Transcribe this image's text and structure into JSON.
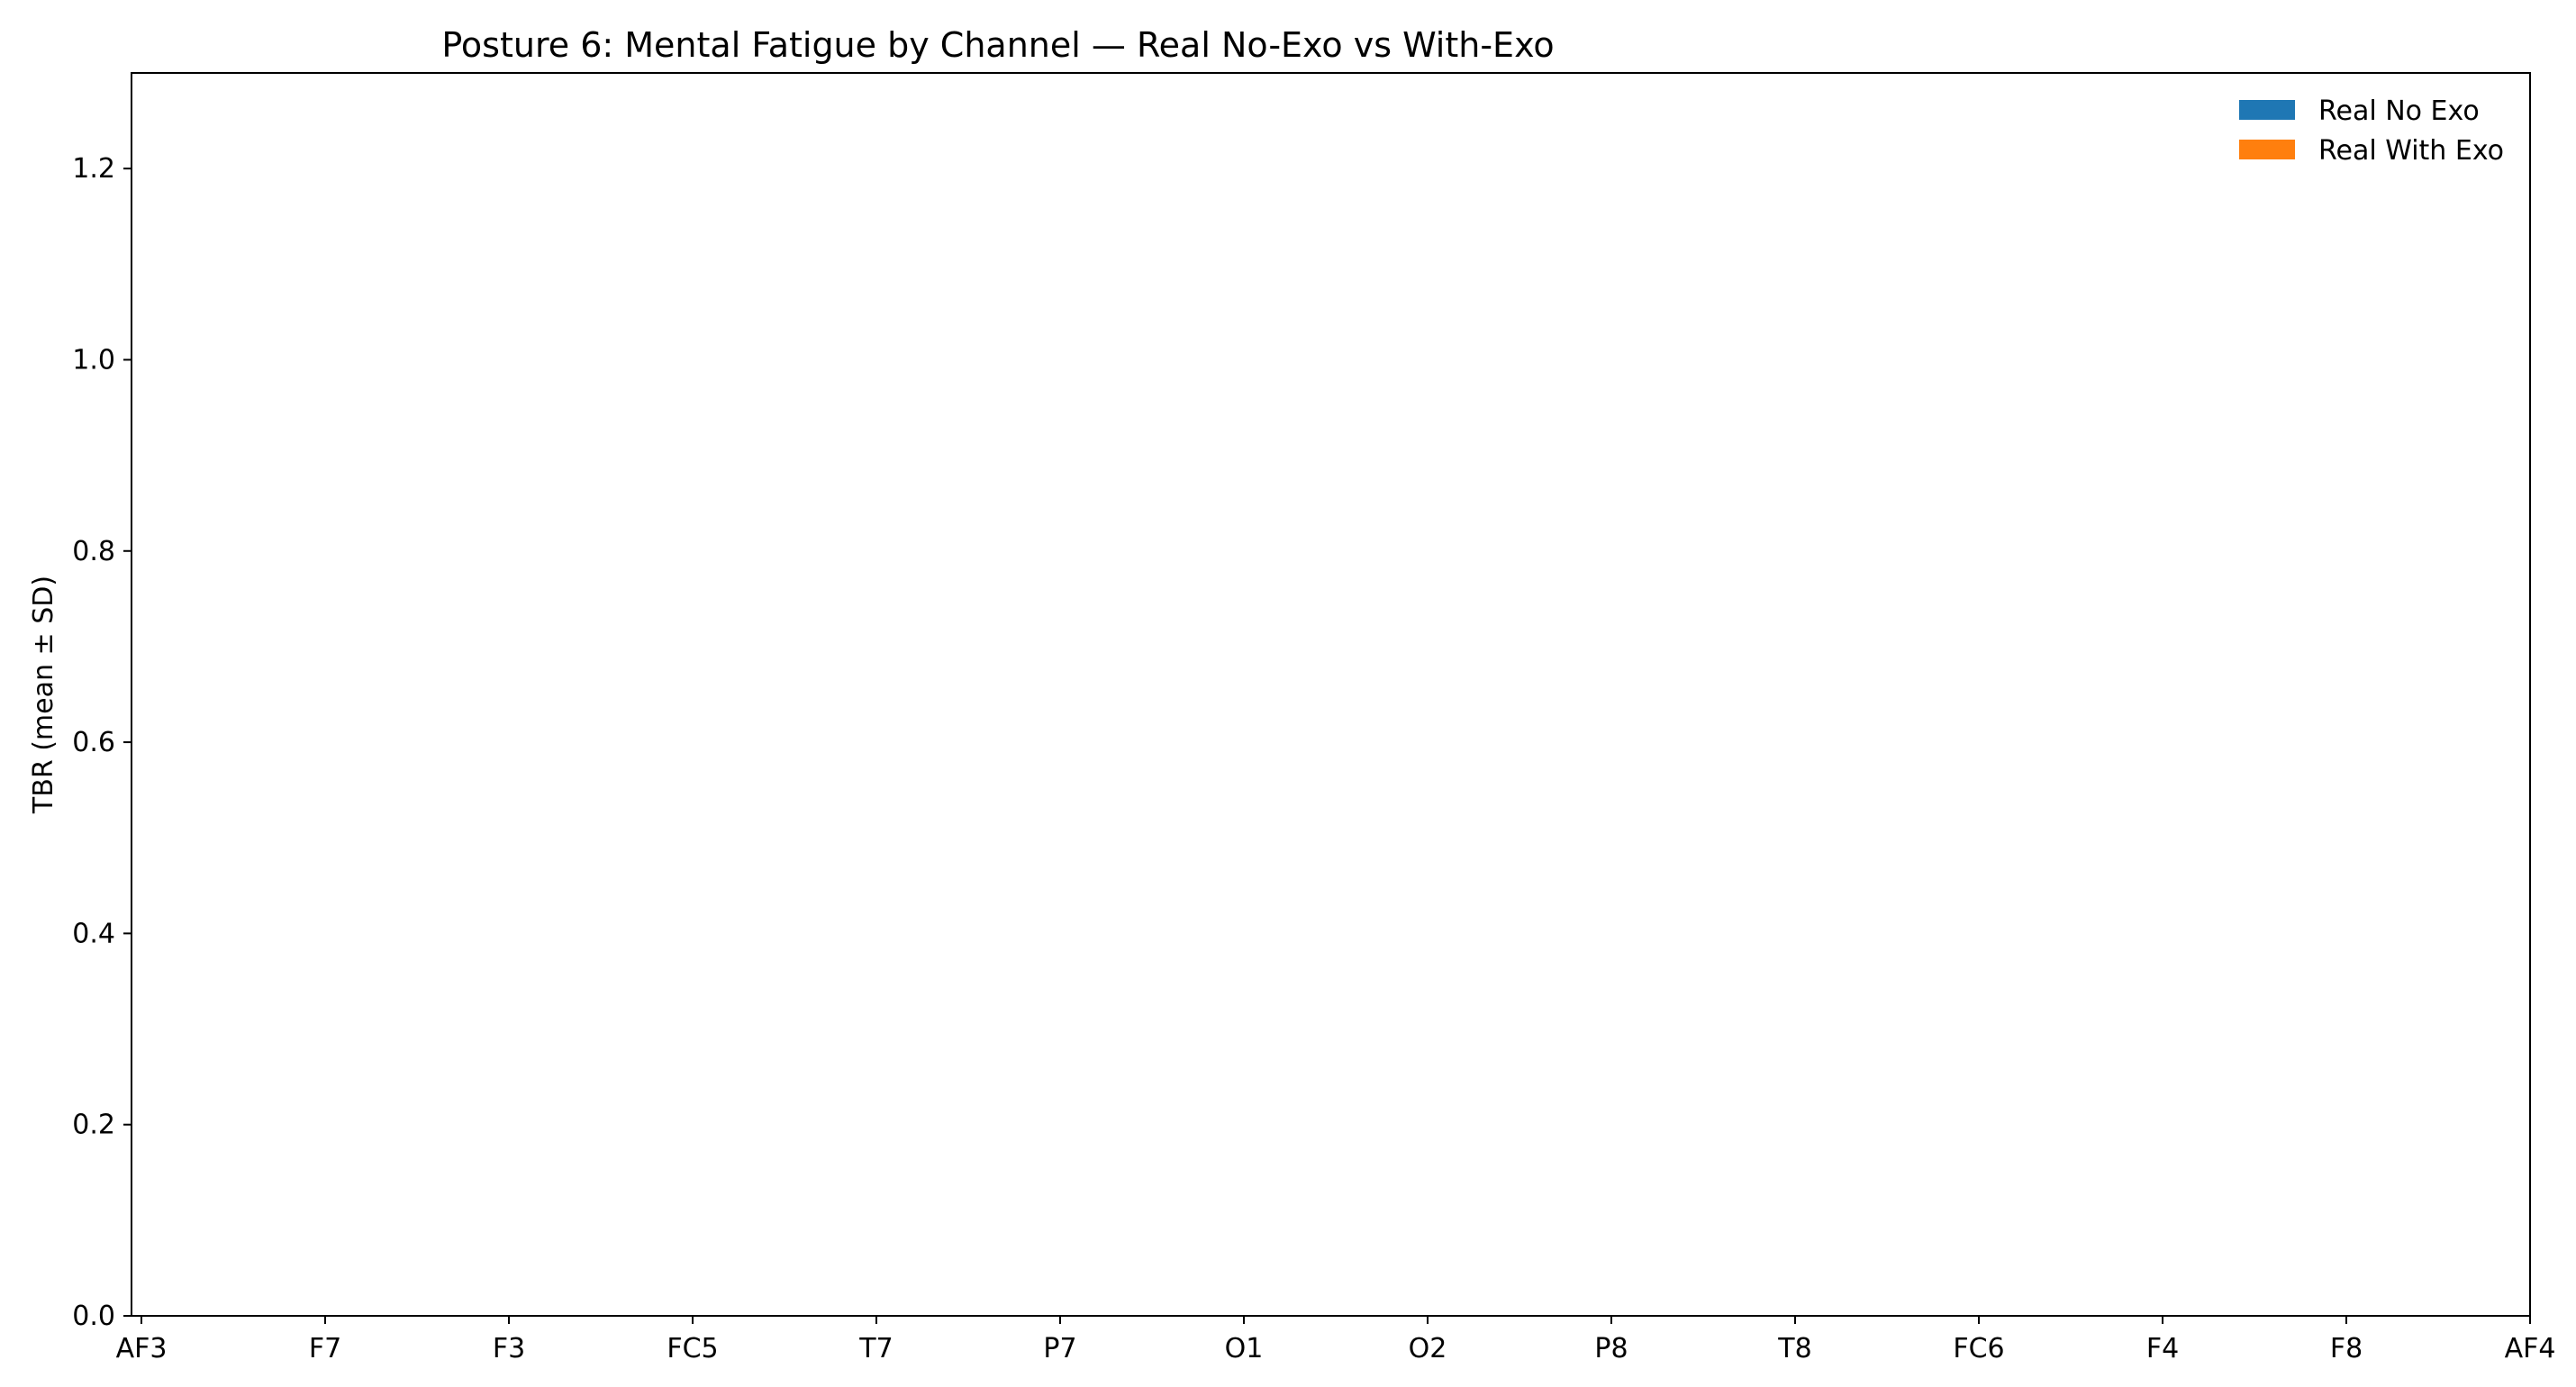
{
  "chart_data": {
    "type": "bar",
    "title": "Posture 6: Mental Fatigue by Channel — Real No-Exo vs With-Exo",
    "xlabel": "",
    "ylabel": "TBR (mean ± SD)",
    "categories": [
      "AF3",
      "F7",
      "F3",
      "FC5",
      "T7",
      "P7",
      "O1",
      "O2",
      "P8",
      "T8",
      "FC6",
      "F4",
      "F8",
      "AF4"
    ],
    "y_ticks": [
      "0.0",
      "0.2",
      "0.4",
      "0.6",
      "0.8",
      "1.0",
      "1.2"
    ],
    "ylim": [
      0,
      1.3
    ],
    "grid": false,
    "legend_position": "top-right",
    "series": [
      {
        "name": "Real No Exo",
        "color": "#1f77b4",
        "values": [
          0,
          0,
          0,
          0,
          0,
          0,
          0,
          0,
          0,
          0,
          0,
          0,
          0,
          0
        ]
      },
      {
        "name": "Real With Exo",
        "color": "#ff7f0e",
        "values": [
          0,
          0,
          0,
          0,
          0,
          0,
          0,
          0,
          0,
          0,
          0,
          0,
          0,
          0
        ]
      }
    ]
  }
}
